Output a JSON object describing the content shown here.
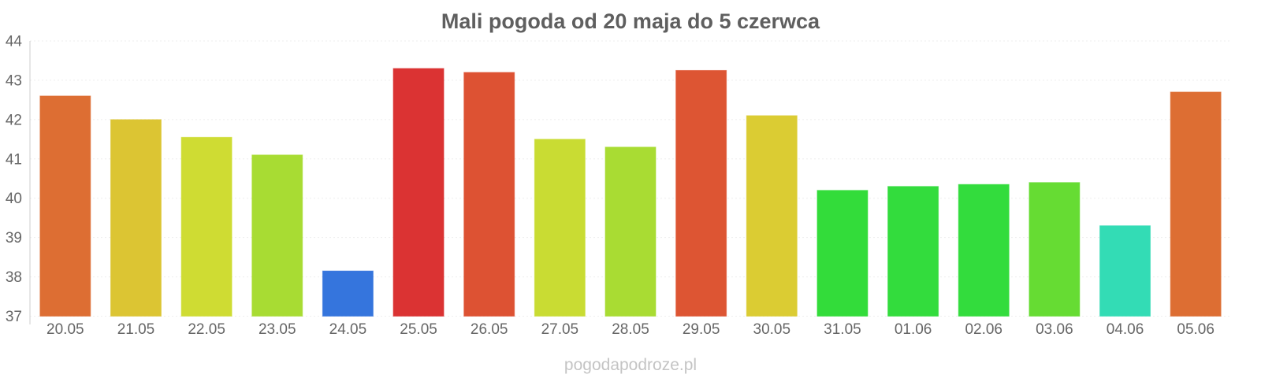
{
  "chart_data": {
    "type": "bar",
    "title": "Mali pogoda od 20 maja do 5 czerwca",
    "xlabel": "",
    "ylabel": "",
    "ylim": [
      37,
      44
    ],
    "yticks": [
      "37",
      "38",
      "39",
      "40",
      "41",
      "42",
      "43",
      "44"
    ],
    "grid": true,
    "categories": [
      "20.05",
      "21.05",
      "22.05",
      "23.05",
      "24.05",
      "25.05",
      "26.05",
      "27.05",
      "28.05",
      "29.05",
      "30.05",
      "31.05",
      "01.06",
      "02.06",
      "03.06",
      "04.06",
      "05.06"
    ],
    "values": [
      42.6,
      42.0,
      41.55,
      41.1,
      38.15,
      43.3,
      43.2,
      41.5,
      41.3,
      43.25,
      42.1,
      40.2,
      40.3,
      40.35,
      40.4,
      39.3,
      42.7
    ],
    "colors": [
      "#dd6e33",
      "#dcc533",
      "#cfdc33",
      "#a8dc33",
      "#3575dd",
      "#db3333",
      "#dd5233",
      "#c9dc33",
      "#a9dc33",
      "#dd5533",
      "#dbcc33",
      "#33dc3a",
      "#33dc3d",
      "#33dc3d",
      "#66dc33",
      "#33dcb5",
      "#dd6e33"
    ]
  },
  "watermark": "pogodapodroze.pl"
}
